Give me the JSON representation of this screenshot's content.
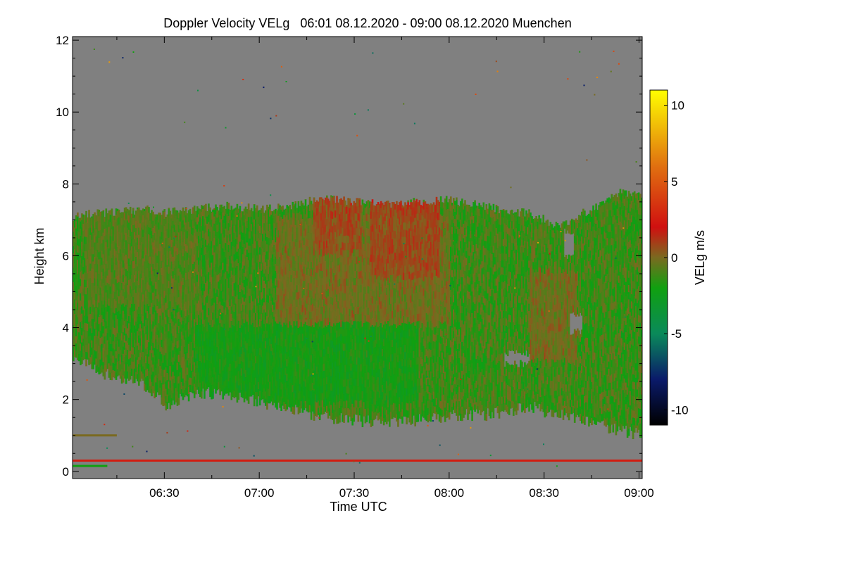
{
  "chart_data": {
    "type": "heatmap",
    "title": "Doppler Velocity VELg   06:01 08.12.2020 - 09:00 08.12.2020 Muenchen",
    "xlabel": "Time UTC",
    "ylabel": "Height km",
    "colorbar_label": "VELg m/s",
    "xlim_minutes_utc": [
      361,
      541
    ],
    "ylim_km": [
      -0.2,
      12.1
    ],
    "x_ticks": [
      {
        "minute": 390,
        "label": "06:30"
      },
      {
        "minute": 420,
        "label": "07:00"
      },
      {
        "minute": 450,
        "label": "07:30"
      },
      {
        "minute": 480,
        "label": "08:00"
      },
      {
        "minute": 510,
        "label": "08:30"
      },
      {
        "minute": 540,
        "label": "09:00"
      }
    ],
    "y_ticks": [
      {
        "value": 0,
        "label": "0"
      },
      {
        "value": 2,
        "label": "2"
      },
      {
        "value": 4,
        "label": "4"
      },
      {
        "value": 6,
        "label": "6"
      },
      {
        "value": 8,
        "label": "8"
      },
      {
        "value": 10,
        "label": "10"
      },
      {
        "value": 12,
        "label": "12"
      }
    ],
    "colorbar": {
      "vmin": -11,
      "vmax": 11,
      "ticks": [
        {
          "value": 10,
          "label": "10"
        },
        {
          "value": 5,
          "label": "5"
        },
        {
          "value": 0,
          "label": "0"
        },
        {
          "value": -5,
          "label": "-5"
        },
        {
          "value": -10,
          "label": "-10"
        }
      ],
      "stops": [
        {
          "value": -11,
          "color": "#000000"
        },
        {
          "value": -8,
          "color": "#0a1a6a"
        },
        {
          "value": -5,
          "color": "#0a8a5a"
        },
        {
          "value": -2,
          "color": "#10a010"
        },
        {
          "value": 0,
          "color": "#7a6a20"
        },
        {
          "value": 2,
          "color": "#d01010"
        },
        {
          "value": 6,
          "color": "#e07010"
        },
        {
          "value": 11,
          "color": "#ffff00"
        }
      ]
    },
    "no_data_color": "#808080",
    "echo_region": {
      "time_minutes": [
        361,
        370,
        380,
        385,
        390,
        393,
        400,
        410,
        420,
        430,
        440,
        450,
        460,
        470,
        480,
        490,
        500,
        505,
        510,
        515,
        520,
        525,
        530,
        535,
        541
      ],
      "top_km": [
        7.1,
        7.2,
        7.25,
        7.3,
        7.2,
        7.25,
        7.3,
        7.4,
        7.3,
        7.4,
        7.6,
        7.5,
        7.45,
        7.5,
        7.55,
        7.4,
        7.2,
        7.2,
        7.0,
        6.8,
        7.1,
        7.3,
        7.6,
        7.8,
        7.6
      ],
      "base_km": [
        3.4,
        2.9,
        2.7,
        2.5,
        2.0,
        2.1,
        2.4,
        2.3,
        2.1,
        1.9,
        1.7,
        1.6,
        1.55,
        1.6,
        1.75,
        1.75,
        1.85,
        2.0,
        1.85,
        1.8,
        1.6,
        1.5,
        1.4,
        1.3,
        1.2
      ]
    },
    "velocity_features": [
      {
        "time_minutes": [
          437,
          452
        ],
        "height_km": [
          6.0,
          7.6
        ],
        "velocity_ms": 2.0
      },
      {
        "time_minutes": [
          455,
          477
        ],
        "height_km": [
          5.3,
          7.5
        ],
        "velocity_ms": 2.5
      },
      {
        "time_minutes": [
          425,
          480
        ],
        "height_km": [
          4.0,
          7.0
        ],
        "velocity_ms": 0.5
      },
      {
        "time_minutes": [
          365,
          400
        ],
        "height_km": [
          4.5,
          7.2
        ],
        "velocity_ms": -0.5
      },
      {
        "time_minutes": [
          505,
          520
        ],
        "height_km": [
          3.0,
          5.5
        ],
        "velocity_ms": 0.5
      },
      {
        "time_minutes": [
          400,
          470
        ],
        "height_km": [
          1.8,
          4.0
        ],
        "velocity_ms": -2.5
      }
    ],
    "gaps": [
      {
        "time_minutes": [
          518,
          522
        ],
        "height_km": [
          3.8,
          4.3
        ]
      },
      {
        "time_minutes": [
          497,
          505
        ],
        "height_km": [
          2.9,
          3.2
        ]
      },
      {
        "time_minutes": [
          516,
          519
        ],
        "height_km": [
          5.9,
          6.6
        ]
      }
    ],
    "low_level_bands": [
      {
        "height_km": 0.3,
        "time_minutes": [
          361,
          541
        ],
        "velocity_ms": 2.5
      },
      {
        "height_km": 0.15,
        "time_minutes": [
          361,
          372
        ],
        "velocity_ms": -2.0
      },
      {
        "height_km": 1.0,
        "time_minutes": [
          361,
          375
        ],
        "velocity_ms": 0.0
      }
    ]
  }
}
